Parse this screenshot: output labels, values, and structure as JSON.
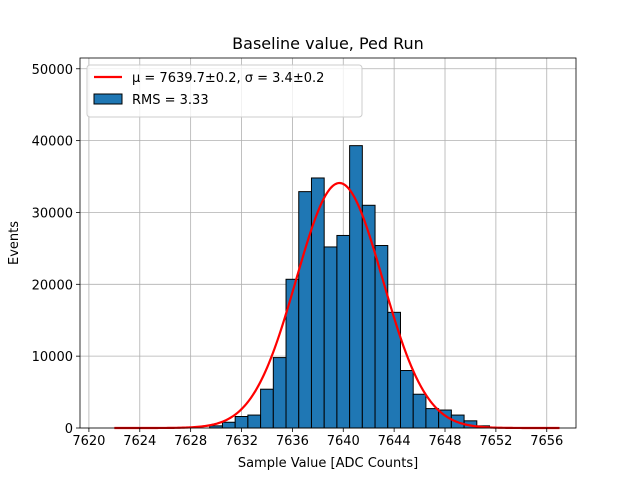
{
  "chart_data": {
    "type": "bar",
    "title": "Baseline value, Ped Run",
    "xlabel": "Sample Value [ADC Counts]",
    "ylabel": "Events",
    "xlim": [
      7619.3,
      7658.3
    ],
    "ylim": [
      0,
      51500
    ],
    "grid": true,
    "legend_position": "upper-left",
    "bar_color": "#1f77b4",
    "fit_color": "#ff0000",
    "x_ticks": [
      7620,
      7624,
      7628,
      7632,
      7636,
      7640,
      7644,
      7648,
      7652,
      7656
    ],
    "y_ticks": [
      0,
      10000,
      20000,
      30000,
      40000,
      50000
    ],
    "histogram": {
      "name": "RMS = 3.33",
      "bin_width": 1.0,
      "bin_centers": [
        7630,
        7631,
        7632,
        7633,
        7634,
        7635,
        7636,
        7637,
        7638,
        7639,
        7640,
        7641,
        7642,
        7643,
        7644,
        7645,
        7646,
        7647,
        7648,
        7649,
        7650,
        7651
      ],
      "counts": [
        300,
        800,
        1600,
        1800,
        5400,
        9800,
        20700,
        32900,
        34800,
        25200,
        26800,
        39300,
        31000,
        25400,
        16100,
        8000,
        4700,
        2700,
        2500,
        1800,
        1000,
        300
      ]
    },
    "fit": {
      "name_prefix": "μ = 7639.7±0.2, σ = 3.4±0.2",
      "mu": 7639.7,
      "sigma": 3.4,
      "amplitude": 34100,
      "x_range": [
        7622,
        7657
      ]
    }
  }
}
